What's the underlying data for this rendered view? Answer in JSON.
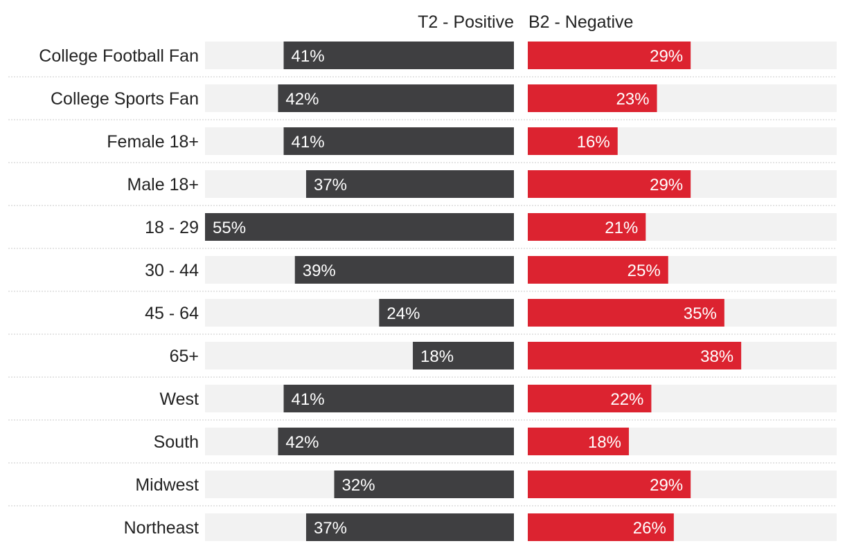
{
  "chart_data": {
    "type": "bar",
    "title": "",
    "series": [
      {
        "name": "T2 - Positive",
        "color": "#3f3f41",
        "values": [
          41,
          42,
          41,
          37,
          55,
          39,
          24,
          18,
          41,
          42,
          32,
          37
        ],
        "labels": [
          "41%",
          "42%",
          "41%",
          "37%",
          "55%",
          "39%",
          "24%",
          "18%",
          "41%",
          "42%",
          "32%",
          "37%"
        ]
      },
      {
        "name": "B2 - Negative",
        "color": "#dc2330",
        "values": [
          29,
          23,
          16,
          29,
          21,
          25,
          35,
          38,
          22,
          18,
          29,
          26
        ],
        "labels": [
          "29%",
          "23%",
          "16%",
          "29%",
          "21%",
          "25%",
          "35%",
          "38%",
          "22%",
          "18%",
          "29%",
          "26%"
        ]
      }
    ],
    "categories": [
      "College Football Fan",
      "College Sports Fan",
      "Female 18+",
      "Male 18+",
      "18 - 29",
      "30 - 44",
      "45 - 64",
      "65+",
      "West",
      "South",
      "Midwest",
      "Northeast"
    ],
    "xlim": [
      0,
      55
    ],
    "track_color": "#f2f2f2",
    "divider_color": "#c8c8c8"
  }
}
